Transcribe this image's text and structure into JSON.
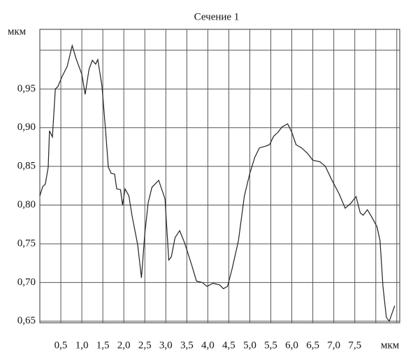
{
  "chart_data": {
    "type": "line",
    "title": "Сечение 1",
    "y_label": "мкм",
    "x_label": "мкм",
    "color": "#222",
    "xlim": [
      0,
      8.57
    ],
    "ylim": [
      0.648,
      1.027
    ],
    "xticks": [
      {
        "value": 0.5,
        "label": "0,5"
      },
      {
        "value": 1.0,
        "label": "1,0"
      },
      {
        "value": 1.5,
        "label": "1,5"
      },
      {
        "value": 2.0,
        "label": "2,0"
      },
      {
        "value": 2.5,
        "label": "2,5"
      },
      {
        "value": 3.0,
        "label": "3,0"
      },
      {
        "value": 3.5,
        "label": "3,5"
      },
      {
        "value": 4.0,
        "label": "4,0"
      },
      {
        "value": 4.5,
        "label": "4,5"
      },
      {
        "value": 5.0,
        "label": "5,0"
      },
      {
        "value": 5.5,
        "label": "5,5"
      },
      {
        "value": 6.0,
        "label": "6,0"
      },
      {
        "value": 6.5,
        "label": "6,5"
      },
      {
        "value": 7.0,
        "label": "7,0"
      },
      {
        "value": 7.5,
        "label": "7,5"
      }
    ],
    "xgrid": [
      8.0,
      8.5
    ],
    "yticks": [
      {
        "value": 0.65,
        "label": "0,65"
      },
      {
        "value": 0.7,
        "label": "0,70"
      },
      {
        "value": 0.75,
        "label": "0,75"
      },
      {
        "value": 0.8,
        "label": "0,80"
      },
      {
        "value": 0.85,
        "label": "0,85"
      },
      {
        "value": 0.9,
        "label": "0,90"
      },
      {
        "value": 0.95,
        "label": "0,95"
      }
    ],
    "ygrid": [
      1.0
    ],
    "grid": true,
    "x": [
      0,
      0.07,
      0.13,
      0.2,
      0.23,
      0.3,
      0.37,
      0.43,
      0.53,
      0.65,
      0.77,
      0.87,
      1.0,
      1.08,
      1.17,
      1.25,
      1.33,
      1.38,
      1.48,
      1.57,
      1.63,
      1.7,
      1.78,
      1.83,
      1.92,
      1.97,
      2.03,
      2.12,
      2.2,
      2.33,
      2.42,
      2.5,
      2.58,
      2.67,
      2.83,
      2.98,
      3.07,
      3.13,
      3.22,
      3.33,
      3.45,
      3.62,
      3.73,
      3.87,
      3.98,
      4.12,
      4.28,
      4.37,
      4.47,
      4.58,
      4.73,
      4.87,
      5.0,
      5.12,
      5.23,
      5.37,
      5.47,
      5.57,
      5.67,
      5.77,
      5.9,
      6.0,
      6.1,
      6.23,
      6.37,
      6.5,
      6.67,
      6.8,
      6.93,
      7.13,
      7.27,
      7.4,
      7.53,
      7.63,
      7.7,
      7.8,
      7.9,
      8.03,
      8.1,
      8.17,
      8.25,
      8.32,
      8.45
    ],
    "values": [
      0.812,
      0.824,
      0.827,
      0.849,
      0.896,
      0.888,
      0.95,
      0.953,
      0.966,
      0.979,
      1.006,
      0.988,
      0.969,
      0.943,
      0.975,
      0.987,
      0.982,
      0.988,
      0.954,
      0.894,
      0.849,
      0.841,
      0.84,
      0.821,
      0.82,
      0.8,
      0.821,
      0.812,
      0.785,
      0.749,
      0.706,
      0.763,
      0.803,
      0.823,
      0.832,
      0.808,
      0.729,
      0.733,
      0.758,
      0.767,
      0.751,
      0.722,
      0.702,
      0.7,
      0.695,
      0.699,
      0.697,
      0.692,
      0.695,
      0.718,
      0.754,
      0.812,
      0.841,
      0.862,
      0.874,
      0.876,
      0.878,
      0.889,
      0.894,
      0.901,
      0.905,
      0.894,
      0.878,
      0.874,
      0.867,
      0.858,
      0.856,
      0.85,
      0.835,
      0.814,
      0.796,
      0.802,
      0.811,
      0.79,
      0.787,
      0.794,
      0.785,
      0.772,
      0.754,
      0.695,
      0.655,
      0.65,
      0.67
    ]
  }
}
